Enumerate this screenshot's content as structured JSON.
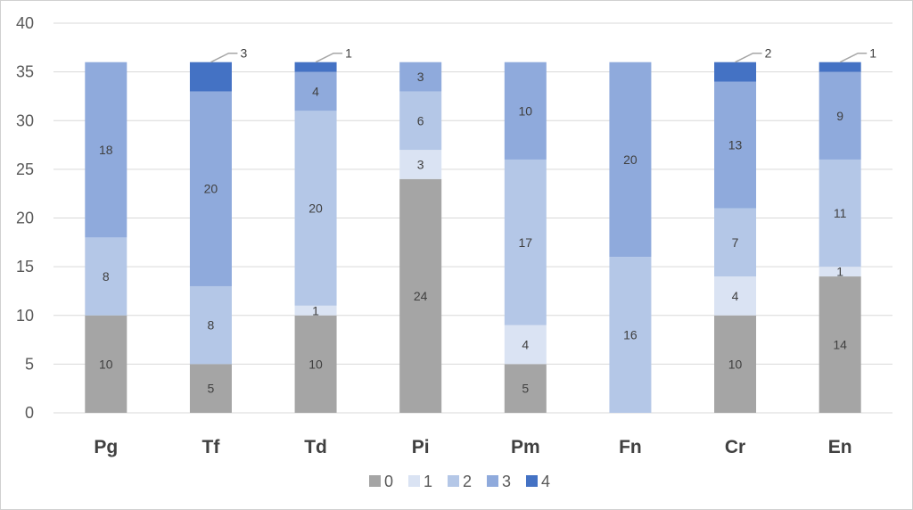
{
  "chart_data": {
    "type": "bar",
    "stacked": true,
    "title": "",
    "xlabel": "",
    "ylabel": "",
    "ylim": [
      0,
      40
    ],
    "yticks": [
      0,
      5,
      10,
      15,
      20,
      25,
      30,
      35,
      40
    ],
    "grid": true,
    "legend_position": "bottom",
    "categories": [
      "Pg",
      "Tf",
      "Td",
      "Pi",
      "Pm",
      "Fn",
      "Cr",
      "En"
    ],
    "series": [
      {
        "name": "0",
        "color": "#a5a5a5",
        "values": [
          10,
          5,
          10,
          24,
          5,
          0,
          10,
          14
        ]
      },
      {
        "name": "1",
        "color": "#dae3f3",
        "values": [
          0,
          0,
          1,
          3,
          4,
          0,
          4,
          1
        ]
      },
      {
        "name": "2",
        "color": "#b4c7e7",
        "values": [
          8,
          8,
          20,
          6,
          17,
          16,
          7,
          11
        ]
      },
      {
        "name": "3",
        "color": "#8faadc",
        "values": [
          18,
          20,
          4,
          3,
          10,
          20,
          13,
          9
        ]
      },
      {
        "name": "4",
        "color": "#4472c4",
        "values": [
          0,
          3,
          1,
          0,
          0,
          0,
          2,
          1
        ]
      }
    ],
    "callout_labels": [
      {
        "category": "Tf",
        "series": "4",
        "text": "3"
      },
      {
        "category": "Td",
        "series": "4",
        "text": "1"
      },
      {
        "category": "Cr",
        "series": "4",
        "text": "2"
      },
      {
        "category": "En",
        "series": "4",
        "text": "1"
      }
    ],
    "gridline_color": "#d9d9d9",
    "label_color": "#404040",
    "leader_color": "#a6a6a6"
  }
}
